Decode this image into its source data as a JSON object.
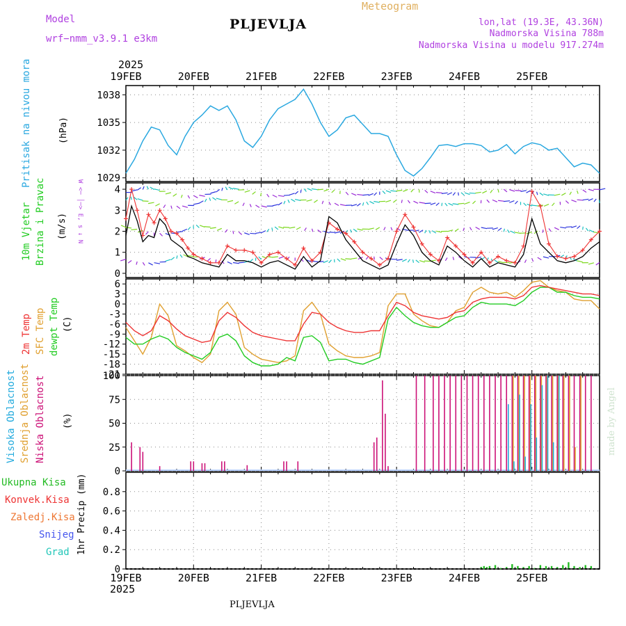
{
  "header": {
    "model_label": "Model",
    "model_name": "wrf−nmm_v3.9.1  e3km",
    "station": "PLJEVLJA",
    "product": "Meteogram",
    "lonlat": "lon,lat (19.3E, 43.36N)",
    "elevation": "Nadmorska Visina 788m",
    "model_elevation": "Nadmorska Visina u modelu 917.274m",
    "year_top": "2025",
    "year_bottom": "2025",
    "footer_station": "PLJEVLJA",
    "credit": "made by Angel"
  },
  "colors": {
    "pressure": "#2aa8e0",
    "wind_speed": "#000000",
    "gust": "#ee3333",
    "t2m": "#ee3333",
    "tsfc": "#e0a030",
    "dewpoint": "#22cc22",
    "cloud_high": "#22aadd",
    "cloud_mid": "#e0a030",
    "cloud_low": "#cc1177",
    "precip_total": "#22bb22",
    "label_purple": "#b040e0"
  },
  "chart_data": [
    {
      "type": "line",
      "id": "pressure",
      "title": "Pritisak na nivou mora",
      "ylabel": "(hPa)",
      "ylim": [
        1028.6,
        1039.0
      ],
      "yticks": [
        1029,
        1032,
        1035,
        1038
      ],
      "x_day_labels": [
        "19FEB",
        "20FEB",
        "21FEB",
        "22FEB",
        "23FEB",
        "24FEB",
        "25FEB"
      ],
      "grid": true,
      "series": [
        {
          "name": "MSL pressure",
          "x_hours": [
            0,
            3,
            6,
            9,
            12,
            15,
            18,
            21,
            24,
            27,
            30,
            33,
            36,
            39,
            42,
            45,
            48,
            51,
            54,
            57,
            60,
            63,
            66,
            69,
            72,
            75,
            78,
            81,
            84,
            87,
            90,
            93,
            96,
            99,
            102,
            105,
            108,
            111,
            114,
            117,
            120,
            123,
            126,
            129,
            132,
            135,
            138,
            141,
            144,
            147,
            150,
            153,
            156,
            159,
            162,
            165,
            168
          ],
          "values": [
            1029.5,
            1031.0,
            1033.0,
            1034.5,
            1034.2,
            1032.5,
            1031.5,
            1033.5,
            1035.0,
            1035.8,
            1036.8,
            1036.3,
            1036.8,
            1035.3,
            1033.0,
            1032.3,
            1033.5,
            1035.3,
            1036.5,
            1037.0,
            1037.5,
            1038.6,
            1037.0,
            1035.0,
            1033.5,
            1034.2,
            1035.5,
            1035.8,
            1034.8,
            1033.8,
            1033.8,
            1033.5,
            1031.5,
            1029.8,
            1029.2,
            1030.0,
            1031.2,
            1032.5,
            1032.6,
            1032.4,
            1032.7,
            1032.7,
            1032.5,
            1031.8,
            1032.0,
            1032.6,
            1031.6,
            1032.4,
            1032.8,
            1032.6,
            1032.0,
            1032.2,
            1031.2,
            1030.2,
            1030.6,
            1030.4,
            1029.5
          ]
        }
      ]
    },
    {
      "type": "line",
      "id": "wind",
      "title": "10m Vjetar Brzina i Pravac",
      "ylabel": "(m/s)",
      "direction_legend": "W <─ │─> E, s ↓ N",
      "ylim": [
        -0.2,
        4.3
      ],
      "yticks": [
        0,
        1,
        2,
        3,
        4
      ],
      "series": [
        {
          "name": "Wind speed",
          "x_hours": [
            0,
            2,
            4,
            6,
            8,
            10,
            12,
            14,
            16,
            18,
            20,
            22,
            24,
            27,
            30,
            33,
            36,
            39,
            42,
            45,
            48,
            51,
            54,
            57,
            60,
            63,
            66,
            69,
            72,
            75,
            78,
            81,
            84,
            87,
            90,
            93,
            96,
            99,
            102,
            105,
            108,
            111,
            114,
            117,
            120,
            123,
            126,
            129,
            132,
            135,
            138,
            141,
            144,
            147,
            150,
            153,
            156,
            159,
            162,
            165,
            168
          ],
          "values": [
            1.8,
            3.2,
            2.5,
            1.5,
            1.8,
            1.7,
            2.6,
            2.3,
            1.6,
            1.4,
            1.2,
            0.8,
            0.7,
            0.5,
            0.4,
            0.3,
            0.9,
            0.6,
            0.6,
            0.5,
            0.3,
            0.5,
            0.6,
            0.4,
            0.2,
            0.8,
            0.3,
            0.6,
            2.7,
            2.4,
            1.6,
            1.1,
            0.6,
            0.4,
            0.2,
            0.4,
            1.4,
            2.3,
            1.8,
            1.0,
            0.6,
            0.4,
            1.3,
            1.0,
            0.6,
            0.3,
            0.7,
            0.3,
            0.5,
            0.4,
            0.3,
            0.9,
            2.6,
            1.4,
            1.0,
            0.6,
            0.5,
            0.6,
            0.8,
            1.2,
            1.5
          ]
        },
        {
          "name": "Wind gust",
          "x_hours": [
            0,
            2,
            4,
            6,
            8,
            10,
            12,
            14,
            16,
            18,
            20,
            22,
            24,
            27,
            30,
            33,
            36,
            39,
            42,
            45,
            48,
            51,
            54,
            57,
            60,
            63,
            66,
            69,
            72,
            75,
            78,
            81,
            84,
            87,
            90,
            93,
            96,
            99,
            102,
            105,
            108,
            111,
            114,
            117,
            120,
            123,
            126,
            129,
            132,
            135,
            138,
            141,
            144,
            147,
            150,
            153,
            156,
            159,
            162,
            165,
            168
          ],
          "values": [
            2.6,
            4.0,
            3.0,
            1.8,
            2.8,
            2.4,
            3.0,
            2.6,
            2.0,
            1.9,
            1.6,
            1.2,
            0.9,
            0.7,
            0.5,
            0.5,
            1.3,
            1.1,
            1.1,
            1.0,
            0.5,
            0.9,
            1.0,
            0.7,
            0.4,
            1.2,
            0.6,
            1.0,
            2.4,
            2.1,
            1.9,
            1.5,
            1.0,
            0.7,
            0.4,
            0.7,
            2.0,
            2.8,
            2.2,
            1.4,
            0.9,
            0.6,
            1.7,
            1.3,
            0.9,
            0.5,
            1.0,
            0.5,
            0.8,
            0.6,
            0.5,
            1.3,
            3.9,
            3.2,
            1.4,
            0.8,
            0.7,
            0.8,
            1.1,
            1.6,
            2.0
          ]
        }
      ]
    },
    {
      "type": "line",
      "id": "temperature",
      "ylabel": "(C)",
      "ylim": [
        -21,
        7.5
      ],
      "yticks": [
        6,
        3,
        0,
        -3,
        -6,
        -9,
        -12,
        -15,
        -18,
        -21
      ],
      "series": [
        {
          "name": "2m Temp",
          "x_hours": [
            0,
            3,
            6,
            9,
            12,
            15,
            18,
            21,
            24,
            27,
            30,
            33,
            36,
            39,
            42,
            45,
            48,
            51,
            54,
            57,
            60,
            63,
            66,
            69,
            72,
            75,
            78,
            81,
            84,
            87,
            90,
            93,
            96,
            99,
            102,
            105,
            108,
            111,
            114,
            117,
            120,
            123,
            126,
            129,
            132,
            135,
            138,
            141,
            144,
            147,
            150,
            153,
            156,
            159,
            162,
            165,
            168
          ],
          "values": [
            -5.5,
            -8.0,
            -9.5,
            -8.0,
            -3.5,
            -5.0,
            -7.5,
            -9.5,
            -10.5,
            -11.5,
            -11.0,
            -5.0,
            -2.5,
            -4.0,
            -6.5,
            -8.5,
            -9.5,
            -10.0,
            -10.5,
            -11.0,
            -11.0,
            -6.0,
            -2.5,
            -3.0,
            -5.5,
            -7.0,
            -8.0,
            -8.5,
            -8.5,
            -8.0,
            -8.0,
            -3.5,
            0.5,
            -0.5,
            -2.5,
            -3.5,
            -4.0,
            -4.5,
            -4.0,
            -2.5,
            -2.0,
            0.5,
            1.5,
            2.0,
            2.0,
            2.0,
            1.5,
            2.5,
            5.0,
            5.5,
            5.0,
            4.5,
            4.0,
            3.5,
            3.0,
            3.0,
            2.5
          ]
        },
        {
          "name": "SFC Temp",
          "x_hours": [
            0,
            3,
            6,
            9,
            12,
            15,
            18,
            21,
            24,
            27,
            30,
            33,
            36,
            39,
            42,
            45,
            48,
            51,
            54,
            57,
            60,
            63,
            66,
            69,
            72,
            75,
            78,
            81,
            84,
            87,
            90,
            93,
            96,
            99,
            102,
            105,
            108,
            111,
            114,
            117,
            120,
            123,
            126,
            129,
            132,
            135,
            138,
            141,
            144,
            147,
            150,
            153,
            156,
            159,
            162,
            165,
            168
          ],
          "values": [
            -7.0,
            -11.0,
            -15.0,
            -10.0,
            0.0,
            -3.5,
            -12.5,
            -14.0,
            -16.0,
            -17.5,
            -15.0,
            -2.0,
            0.5,
            -3.0,
            -13.0,
            -15.0,
            -16.5,
            -17.0,
            -17.5,
            -17.0,
            -15.5,
            -2.0,
            0.5,
            -3.0,
            -12.0,
            -14.0,
            -15.5,
            -16.0,
            -16.0,
            -15.5,
            -14.5,
            -0.5,
            3.0,
            3.0,
            -3.0,
            -5.0,
            -6.5,
            -7.0,
            -5.5,
            -2.0,
            -1.0,
            3.5,
            5.0,
            3.5,
            3.0,
            3.5,
            2.0,
            4.0,
            6.5,
            7.0,
            5.0,
            4.0,
            3.5,
            1.5,
            1.0,
            1.0,
            -1.5
          ]
        },
        {
          "name": "dewpt Temp",
          "x_hours": [
            0,
            3,
            6,
            9,
            12,
            15,
            18,
            21,
            24,
            27,
            30,
            33,
            36,
            39,
            42,
            45,
            48,
            51,
            54,
            57,
            60,
            63,
            66,
            69,
            72,
            75,
            78,
            81,
            84,
            87,
            90,
            93,
            96,
            99,
            102,
            105,
            108,
            111,
            114,
            117,
            120,
            123,
            126,
            129,
            132,
            135,
            138,
            141,
            144,
            147,
            150,
            153,
            156,
            159,
            162,
            165,
            168
          ],
          "values": [
            -10.0,
            -12.0,
            -12.0,
            -10.5,
            -9.5,
            -10.5,
            -13.0,
            -14.5,
            -15.5,
            -16.5,
            -14.5,
            -10.0,
            -9.0,
            -11.0,
            -15.5,
            -17.5,
            -18.5,
            -18.5,
            -18.0,
            -16.0,
            -17.0,
            -10.0,
            -9.5,
            -11.5,
            -17.0,
            -16.5,
            -16.5,
            -17.5,
            -18.0,
            -17.0,
            -16.0,
            -4.5,
            -1.0,
            -3.5,
            -5.5,
            -6.5,
            -7.0,
            -7.0,
            -5.5,
            -4.0,
            -3.5,
            -1.0,
            0.5,
            0.0,
            0.0,
            0.0,
            -0.5,
            1.0,
            3.5,
            5.0,
            5.0,
            3.5,
            3.5,
            2.5,
            2.0,
            2.0,
            1.5
          ]
        }
      ]
    },
    {
      "type": "bar",
      "id": "clouds",
      "ylabel": "(%)",
      "ylim": [
        0,
        100
      ],
      "yticks": [
        0,
        25,
        50,
        75,
        100
      ],
      "series_labels": [
        "Visoka Oblacnost",
        "Srednja Oblacnost",
        "Niska Oblacnost"
      ],
      "series": [
        {
          "name": "Niska Oblacnost",
          "x_hours": [
            2,
            5,
            6,
            12,
            23,
            24,
            27,
            28,
            34,
            35,
            43,
            56,
            57,
            61,
            88,
            89,
            91,
            92,
            93,
            103,
            106,
            109,
            111,
            113,
            115,
            117,
            119,
            121,
            123,
            125,
            127,
            129,
            131,
            133,
            135,
            137,
            139,
            141,
            143,
            145,
            147,
            149,
            151,
            153,
            155,
            157,
            159,
            161,
            163,
            165
          ],
          "values": [
            30,
            25,
            20,
            5,
            10,
            10,
            8,
            8,
            10,
            10,
            6,
            10,
            10,
            10,
            30,
            35,
            95,
            60,
            5,
            100,
            100,
            100,
            100,
            100,
            100,
            100,
            100,
            100,
            100,
            100,
            100,
            100,
            100,
            100,
            100,
            100,
            100,
            100,
            100,
            100,
            100,
            100,
            100,
            100,
            100,
            100,
            100,
            100,
            100,
            100
          ]
        },
        {
          "name": "Srednja Oblacnost",
          "x_hours": [
            137,
            139,
            141,
            143,
            145,
            147,
            149,
            151,
            153,
            155,
            157,
            159,
            161
          ],
          "values": [
            100,
            100,
            100,
            100,
            100,
            100,
            100,
            100,
            100,
            100,
            100,
            25,
            100
          ]
        },
        {
          "name": "Visoka Oblacnost",
          "x_hours": [
            136,
            138,
            140,
            142,
            144,
            146,
            148,
            150,
            152,
            154
          ],
          "values": [
            70,
            10,
            80,
            15,
            70,
            35,
            90,
            100,
            30,
            100
          ]
        }
      ]
    },
    {
      "type": "bar",
      "id": "precip",
      "ylabel": "1hr Precip (mm)",
      "ylim": [
        0,
        1.0
      ],
      "yticks": [
        0,
        0.2,
        0.4,
        0.6,
        0.8
      ],
      "legend": [
        "Ukupna Kisa",
        "Konvek.Kisa",
        "Zaledj.Kisa",
        "Snijeg",
        "Grad"
      ],
      "series": [
        {
          "name": "Ukupna Kisa",
          "x_hours": [
            126,
            127,
            128,
            129,
            131,
            133,
            135,
            137,
            139,
            141,
            143,
            145,
            147,
            149,
            151,
            153,
            155,
            157,
            159,
            161,
            163,
            165
          ],
          "values": [
            0.02,
            0.03,
            0.02,
            0.03,
            0.04,
            0.01,
            0.02,
            0.05,
            0.03,
            0.02,
            0.03,
            0.01,
            0.04,
            0.03,
            0.03,
            0.02,
            0.04,
            0.07,
            0.03,
            0.02,
            0.04,
            0.03
          ]
        }
      ]
    }
  ]
}
